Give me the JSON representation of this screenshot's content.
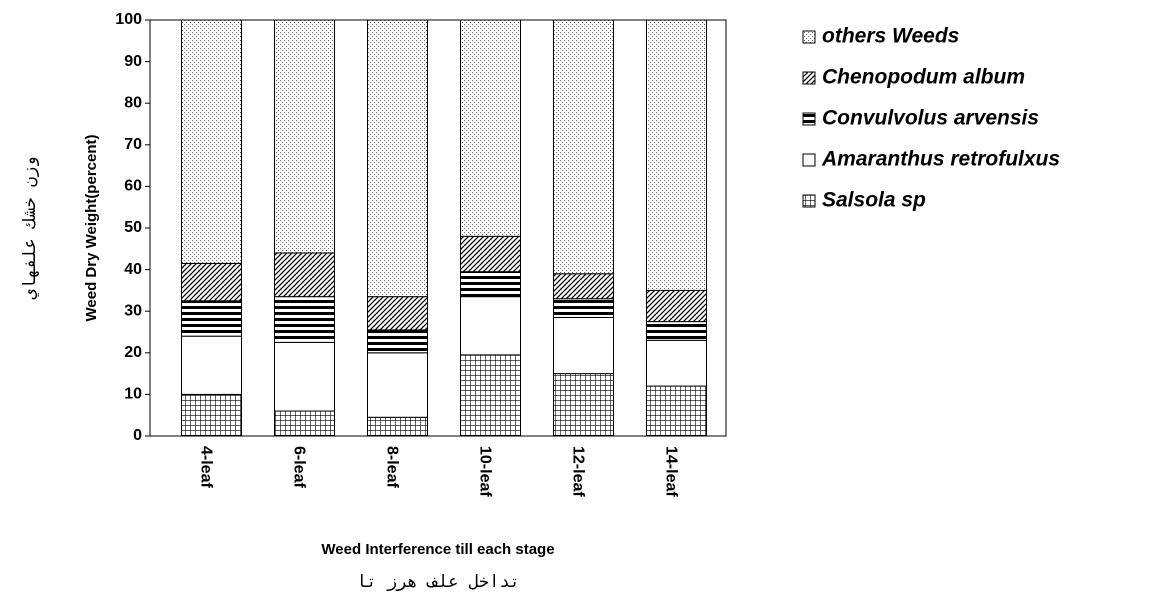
{
  "chart_data": {
    "type": "stacked_bar",
    "y_label": "Weed Dry Weight(percent)",
    "y_label_fa": "وزن خشك علفهاي",
    "x_label": "Weed Interference till each stage",
    "x_label_fa": "تداخل علف هرز تا",
    "categories": [
      "4-leaf",
      "6-leaf",
      "8-leaf",
      "10-leaf",
      "12-leaf",
      "14-leaf"
    ],
    "series": [
      {
        "name": "Salsola sp",
        "pattern": "grid",
        "values": [
          10,
          6,
          4.5,
          19.5,
          15,
          12
        ]
      },
      {
        "name": "Amaranthus retrofulxus",
        "pattern": "white",
        "values": [
          14,
          16.5,
          15.5,
          14,
          13.5,
          11
        ]
      },
      {
        "name": "Convulvolus arvensis",
        "pattern": "stripes",
        "values": [
          8.5,
          11,
          5.5,
          6,
          4.5,
          4.5
        ]
      },
      {
        "name": "Chenopodum album",
        "pattern": "hatch",
        "values": [
          9,
          10.5,
          8,
          8.5,
          6,
          7.5
        ]
      },
      {
        "name": "others Weeds",
        "pattern": "dots",
        "values": [
          58.5,
          56,
          66.5,
          52,
          61,
          65
        ]
      }
    ],
    "ylim": [
      0,
      100
    ],
    "yticks": [
      0,
      10,
      20,
      30,
      40,
      50,
      60,
      70,
      80,
      90,
      100
    ]
  }
}
